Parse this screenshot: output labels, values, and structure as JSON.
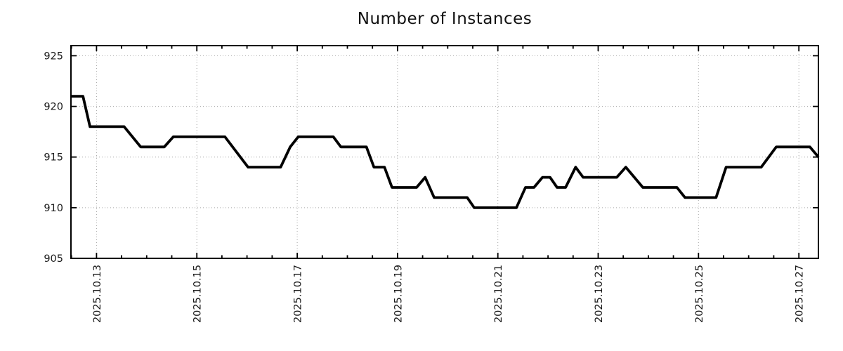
{
  "chart_data": {
    "type": "line",
    "title": "Number of Instances",
    "xlabel": "",
    "ylabel": "",
    "legend": {
      "show": false
    },
    "grid": {
      "show": true,
      "style": "dotted",
      "color": "#a6a6a6"
    },
    "x_axis": {
      "unit": "date",
      "tick_labels": [
        "2025.10.13",
        "2025.10.15",
        "2025.10.17",
        "2025.10.19",
        "2025.10.21",
        "2025.10.23",
        "2025.10.25",
        "2025.10.27"
      ],
      "tick_positions_days": [
        0,
        2,
        4,
        6,
        8,
        10,
        12,
        14
      ],
      "minor_tick_step_days": 0.5,
      "range_days": [
        -0.51,
        14.39
      ]
    },
    "y_axis": {
      "ticks": [
        905,
        910,
        915,
        920,
        925
      ],
      "range": [
        905,
        926
      ]
    },
    "series": [
      {
        "name": "Number of Instances",
        "color": "#000000",
        "points_days_value": [
          [
            -0.51,
            921
          ],
          [
            -0.27,
            921
          ],
          [
            -0.13,
            918
          ],
          [
            0.55,
            918
          ],
          [
            0.88,
            916
          ],
          [
            1.35,
            916
          ],
          [
            1.53,
            917
          ],
          [
            2.56,
            917
          ],
          [
            3.02,
            914
          ],
          [
            3.67,
            914
          ],
          [
            3.86,
            916
          ],
          [
            4.02,
            917
          ],
          [
            4.72,
            917
          ],
          [
            4.87,
            916
          ],
          [
            5.38,
            916
          ],
          [
            5.53,
            914
          ],
          [
            5.74,
            914
          ],
          [
            5.89,
            912
          ],
          [
            6.38,
            912
          ],
          [
            6.55,
            913
          ],
          [
            6.73,
            911
          ],
          [
            7.39,
            911
          ],
          [
            7.53,
            910
          ],
          [
            8.37,
            910
          ],
          [
            8.55,
            912
          ],
          [
            8.72,
            912
          ],
          [
            8.89,
            913
          ],
          [
            9.04,
            913
          ],
          [
            9.18,
            912
          ],
          [
            9.35,
            912
          ],
          [
            9.55,
            914
          ],
          [
            9.7,
            913
          ],
          [
            10.37,
            913
          ],
          [
            10.55,
            914
          ],
          [
            10.89,
            912
          ],
          [
            11.57,
            912
          ],
          [
            11.73,
            911
          ],
          [
            12.35,
            911
          ],
          [
            12.55,
            914
          ],
          [
            13.25,
            914
          ],
          [
            13.55,
            916
          ],
          [
            14.22,
            916
          ],
          [
            14.39,
            915
          ]
        ]
      }
    ],
    "style": {
      "line_color": "#000000",
      "background": "#ffffff",
      "text_color": "#1a1a1a",
      "axis_color": "#000000"
    }
  }
}
